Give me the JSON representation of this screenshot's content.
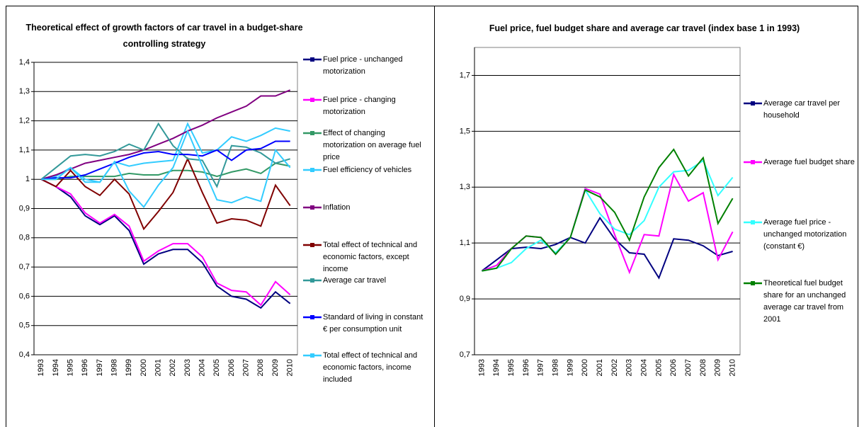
{
  "chart_data": [
    {
      "type": "line",
      "title": "Theoretical effect of growth factors of car travel in a budget-share controlling strategy",
      "categories": [
        "1993",
        "1994",
        "1995",
        "1996",
        "1997",
        "1998",
        "1999",
        "2000",
        "2001",
        "2002",
        "2003",
        "2004",
        "2005",
        "2006",
        "2007",
        "2008",
        "2009",
        "2010"
      ],
      "ylim": [
        0.4,
        1.4
      ],
      "yticks": [
        {
          "value": 0.4,
          "label": "0,4"
        },
        {
          "value": 0.5,
          "label": "0,5"
        },
        {
          "value": 0.6,
          "label": "0,6"
        },
        {
          "value": 0.7,
          "label": "0,7"
        },
        {
          "value": 0.8,
          "label": "0,8"
        },
        {
          "value": 0.9,
          "label": "0,9"
        },
        1,
        {
          "value": 1.1,
          "label": "1,1"
        },
        {
          "value": 1.2,
          "label": "1,2"
        },
        {
          "value": 1.3,
          "label": "1,3"
        },
        {
          "value": 1.4,
          "label": "1,4"
        }
      ],
      "grid": true,
      "legend": "right",
      "series": [
        {
          "name": "Fuel price - unchanged motorization",
          "color": "#000080",
          "values": [
            1,
            0.975,
            0.94,
            0.875,
            0.845,
            0.875,
            0.825,
            0.71,
            0.745,
            0.76,
            0.76,
            0.715,
            0.635,
            0.6,
            0.59,
            0.56,
            0.615,
            0.575
          ]
        },
        {
          "name": "Fuel price - changing motorization",
          "color": "#ff00ff",
          "values": [
            1,
            0.975,
            0.95,
            0.885,
            0.85,
            0.88,
            0.84,
            0.72,
            0.755,
            0.78,
            0.78,
            0.735,
            0.645,
            0.62,
            0.615,
            0.57,
            0.65,
            0.605
          ]
        },
        {
          "name": "Effect of changing motorization on average fuel price",
          "color": "#339966",
          "values": [
            1,
            1,
            1.01,
            1.01,
            1.01,
            1.01,
            1.02,
            1.015,
            1.015,
            1.03,
            1.03,
            1.025,
            1.01,
            1.025,
            1.035,
            1.02,
            1.055,
            1.045
          ]
        },
        {
          "name": "Fuel efficiency of vehicles",
          "color": "#33ccff",
          "values": [
            1,
            1.01,
            1.04,
            1.0,
            0.99,
            1.06,
            1.045,
            1.055,
            1.06,
            1.065,
            1.19,
            1.09,
            1.1,
            1.145,
            1.13,
            1.15,
            1.175,
            1.165
          ]
        },
        {
          "name": "Inflation",
          "color": "#800080",
          "values": [
            1,
            1.015,
            1.035,
            1.055,
            1.065,
            1.075,
            1.085,
            1.1,
            1.12,
            1.14,
            1.165,
            1.185,
            1.21,
            1.23,
            1.25,
            1.285,
            1.285,
            1.305
          ]
        },
        {
          "name": "Total effect of technical and economic factors, except income",
          "color": "#800000",
          "values": [
            1,
            0.975,
            1.03,
            0.975,
            0.945,
            1.0,
            0.95,
            0.83,
            0.89,
            0.955,
            1.07,
            0.955,
            0.85,
            0.865,
            0.86,
            0.84,
            0.98,
            0.91
          ]
        },
        {
          "name": "Average car travel",
          "color": "#339999",
          "values": [
            1,
            1.04,
            1.08,
            1.085,
            1.08,
            1.095,
            1.12,
            1.1,
            1.19,
            1.115,
            1.07,
            1.065,
            0.975,
            1.115,
            1.11,
            1.09,
            1.055,
            1.07
          ]
        },
        {
          "name": "Standard of living in constant € per consumption unit",
          "color": "#0000ff",
          "values": [
            1,
            1.005,
            1.005,
            1.015,
            1.035,
            1.055,
            1.075,
            1.09,
            1.095,
            1.085,
            1.085,
            1.08,
            1.1,
            1.065,
            1.1,
            1.105,
            1.13,
            1.13
          ]
        },
        {
          "name": "Total effect of technical and economic factors, income included",
          "color": "#33ccff",
          "values": [
            1,
            1.0,
            1.04,
            0.99,
            0.99,
            1.06,
            0.96,
            0.905,
            0.98,
            1.04,
            1.165,
            1.045,
            0.93,
            0.92,
            0.94,
            0.925,
            1.1,
            1.04
          ]
        }
      ]
    },
    {
      "type": "line",
      "title": "Fuel price, fuel budget share and average car travel (index base 1 in 1993)",
      "categories": [
        "1993",
        "1994",
        "1995",
        "1996",
        "1997",
        "1998",
        "1999",
        "2000",
        "2001",
        "2002",
        "2003",
        "2004",
        "2005",
        "2006",
        "2007",
        "2008",
        "2009",
        "2010"
      ],
      "ylim": [
        0.7,
        1.8
      ],
      "yticks": [
        {
          "value": 0.7,
          "label": "0,7"
        },
        {
          "value": 0.9,
          "label": "0,9"
        },
        {
          "value": 1.1,
          "label": "1,1"
        },
        {
          "value": 1.3,
          "label": "1,3"
        },
        {
          "value": 1.5,
          "label": "1,5"
        },
        {
          "value": 1.7,
          "label": "1,7"
        }
      ],
      "grid": true,
      "legend": "right",
      "series": [
        {
          "name": "Average car travel per household",
          "color": "#000080",
          "values": [
            1,
            1.04,
            1.08,
            1.085,
            1.08,
            1.095,
            1.12,
            1.1,
            1.19,
            1.115,
            1.065,
            1.06,
            0.975,
            1.115,
            1.11,
            1.09,
            1.055,
            1.07
          ]
        },
        {
          "name": "Average fuel budget share",
          "color": "#ff00ff",
          "values": [
            1,
            1.02,
            1.08,
            1.125,
            1.12,
            1.06,
            1.12,
            1.295,
            1.275,
            1.13,
            0.995,
            1.13,
            1.125,
            1.345,
            1.25,
            1.28,
            1.04,
            1.14
          ]
        },
        {
          "name": "Average fuel price - unchanged motorization (constant €)",
          "color": "#33ffff",
          "values": [
            1,
            1.01,
            1.03,
            1.08,
            1.11,
            1.065,
            1.12,
            1.29,
            1.205,
            1.15,
            1.13,
            1.18,
            1.3,
            1.355,
            1.36,
            1.395,
            1.27,
            1.335
          ]
        },
        {
          "name": "Theoretical fuel budget share for an unchanged average car travel from 2001",
          "color": "#008000",
          "values": [
            1,
            1.01,
            1.08,
            1.125,
            1.12,
            1.06,
            1.12,
            1.29,
            1.265,
            1.21,
            1.11,
            1.265,
            1.37,
            1.435,
            1.34,
            1.405,
            1.17,
            1.26
          ]
        }
      ]
    }
  ]
}
